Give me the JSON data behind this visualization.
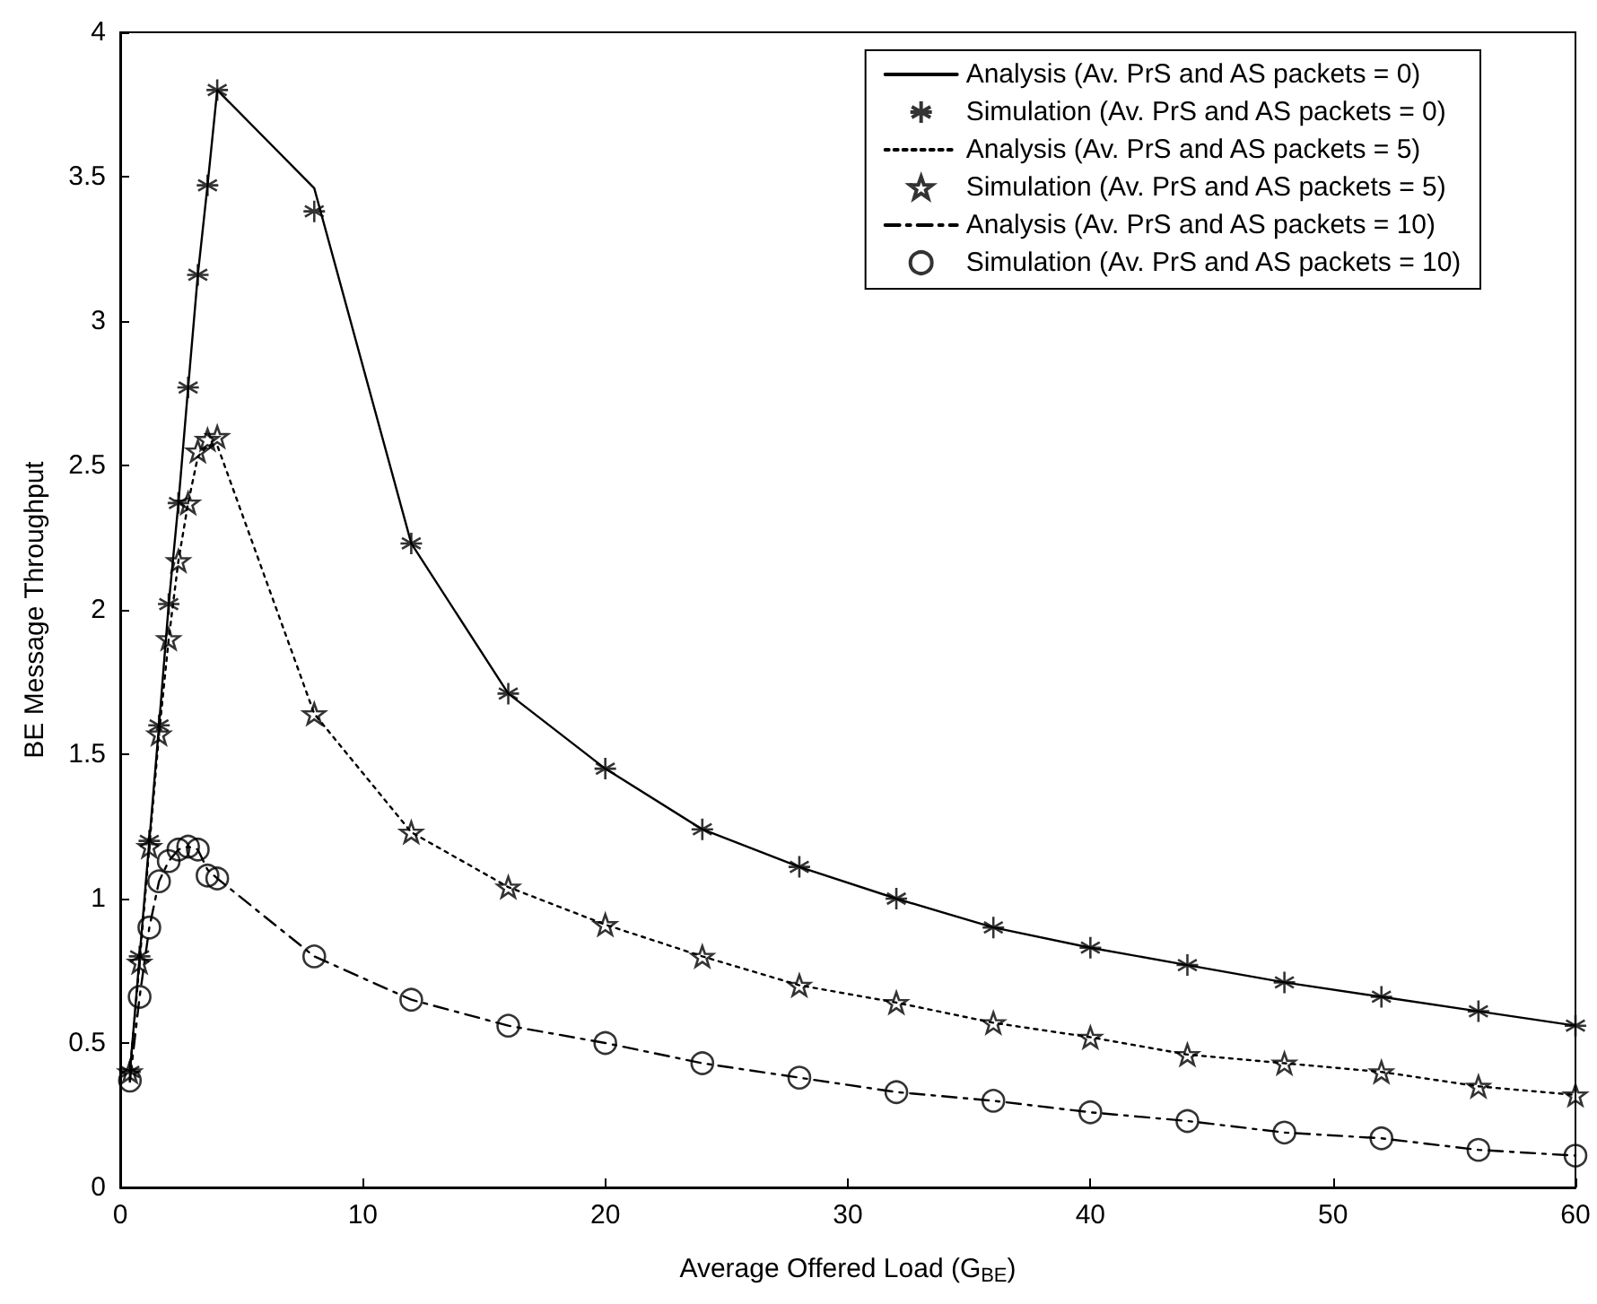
{
  "chart_data": {
    "type": "line",
    "xlabel": "Average Offered Load (G$_{BE}$)",
    "ylabel": "BE Message Throughput",
    "xlim": [
      0,
      60
    ],
    "xticks": [
      0,
      10,
      20,
      30,
      40,
      50,
      60
    ],
    "ylim": [
      0,
      4
    ],
    "yticks": [
      0,
      0.5,
      1,
      1.5,
      2,
      2.5,
      3,
      3.5,
      4
    ],
    "grid": false,
    "legend": "top right",
    "x": [
      0.4,
      0.8,
      1.2,
      1.6,
      2,
      2.4,
      2.8,
      3.2,
      3.6,
      4,
      8,
      12,
      16,
      20,
      24,
      28,
      32,
      36,
      40,
      44,
      48,
      52,
      56,
      60
    ],
    "series": [
      {
        "name": "Analysis (Av. PrS and AS packets = 0)",
        "color": "#000000",
        "line_style": "solid",
        "marker": "none",
        "values": [
          0.4,
          0.8,
          1.2,
          1.6,
          2.02,
          2.37,
          2.77,
          3.16,
          3.47,
          3.8,
          3.46,
          2.23,
          1.71,
          1.45,
          1.24,
          1.11,
          1.0,
          0.9,
          0.83,
          0.77,
          0.71,
          0.66,
          0.61,
          0.56
        ]
      },
      {
        "name": "Simulation (Av. PrS and AS packets = 0)",
        "type": "scatter",
        "color": "#000000",
        "marker": "cross",
        "values": [
          0.4,
          0.8,
          1.2,
          1.6,
          2.02,
          2.37,
          2.77,
          3.16,
          3.47,
          3.8,
          3.38,
          2.23,
          1.71,
          1.45,
          1.24,
          1.11,
          1.0,
          0.9,
          0.83,
          0.77,
          0.71,
          0.66,
          0.61,
          0.56
        ]
      },
      {
        "name": "Analysis (Av. PrS and AS packets = 5)",
        "color": "#000000",
        "line_style": "dotted",
        "marker": "none",
        "values": [
          0.4,
          0.78,
          1.18,
          1.57,
          1.9,
          2.17,
          2.37,
          2.53,
          2.57,
          2.57,
          1.64,
          1.23,
          1.04,
          0.91,
          0.8,
          0.7,
          0.64,
          0.57,
          0.52,
          0.46,
          0.43,
          0.4,
          0.35,
          0.32
        ]
      },
      {
        "name": "Simulation (Av. PrS and AS packets = 5)",
        "type": "scatter",
        "color": "#000000",
        "marker": "star",
        "values": [
          0.4,
          0.78,
          1.18,
          1.57,
          1.9,
          2.17,
          2.37,
          2.55,
          2.59,
          2.6,
          1.64,
          1.23,
          1.04,
          0.91,
          0.8,
          0.7,
          0.64,
          0.57,
          0.52,
          0.46,
          0.43,
          0.4,
          0.35,
          0.32
        ]
      },
      {
        "name": "Analysis (Av. PrS and AS packets = 10)",
        "color": "#000000",
        "line_style": "dashed",
        "marker": "none",
        "values": [
          0.37,
          0.66,
          0.9,
          1.06,
          1.13,
          1.17,
          1.18,
          1.17,
          1.1,
          1.07,
          0.8,
          0.65,
          0.56,
          0.5,
          0.43,
          0.38,
          0.33,
          0.3,
          0.26,
          0.23,
          0.19,
          0.17,
          0.13,
          0.11
        ]
      },
      {
        "name": "Simulation (Av. PrS and AS packets = 10)",
        "type": "scatter",
        "color": "#000000",
        "marker": "circle",
        "values": [
          0.37,
          0.66,
          0.9,
          1.06,
          1.13,
          1.17,
          1.18,
          1.17,
          1.08,
          1.07,
          0.8,
          0.65,
          0.56,
          0.5,
          0.43,
          0.38,
          0.33,
          0.3,
          0.26,
          0.23,
          0.19,
          0.17,
          0.13,
          0.11
        ]
      }
    ]
  }
}
